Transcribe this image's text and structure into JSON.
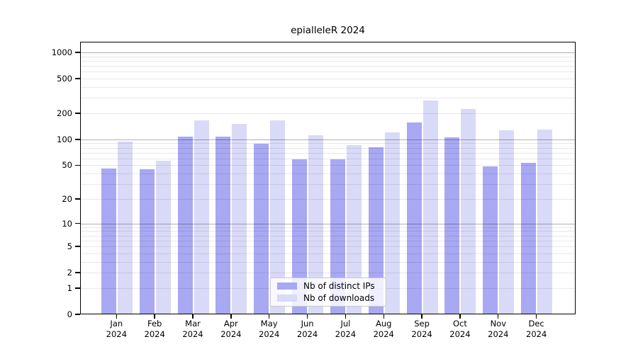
{
  "chart_data": {
    "type": "bar",
    "title": "epialleleR 2024",
    "y_scale": "log10(value+1)",
    "ylim": [
      0,
      1325
    ],
    "y_ticks": [
      0,
      1,
      2,
      5,
      10,
      20,
      50,
      100,
      200,
      500,
      1000
    ],
    "grid": true,
    "legend_position": "lower center",
    "categories": [
      {
        "month": "Jan",
        "year": "2024"
      },
      {
        "month": "Feb",
        "year": "2024"
      },
      {
        "month": "Mar",
        "year": "2024"
      },
      {
        "month": "Apr",
        "year": "2024"
      },
      {
        "month": "May",
        "year": "2024"
      },
      {
        "month": "Jun",
        "year": "2024"
      },
      {
        "month": "Jul",
        "year": "2024"
      },
      {
        "month": "Aug",
        "year": "2024"
      },
      {
        "month": "Sep",
        "year": "2024"
      },
      {
        "month": "Oct",
        "year": "2024"
      },
      {
        "month": "Nov",
        "year": "2024"
      },
      {
        "month": "Dec",
        "year": "2024"
      }
    ],
    "series": [
      {
        "name": "Nb of distinct IPs",
        "color": "#a8a8f3",
        "values": [
          46,
          45,
          108,
          108,
          89,
          59,
          59,
          81,
          158,
          105,
          49,
          53
        ]
      },
      {
        "name": "Nb of downloads",
        "color": "#d9d9f8",
        "values": [
          94,
          57,
          166,
          151,
          166,
          112,
          85,
          120,
          279,
          225,
          128,
          130
        ]
      }
    ]
  }
}
